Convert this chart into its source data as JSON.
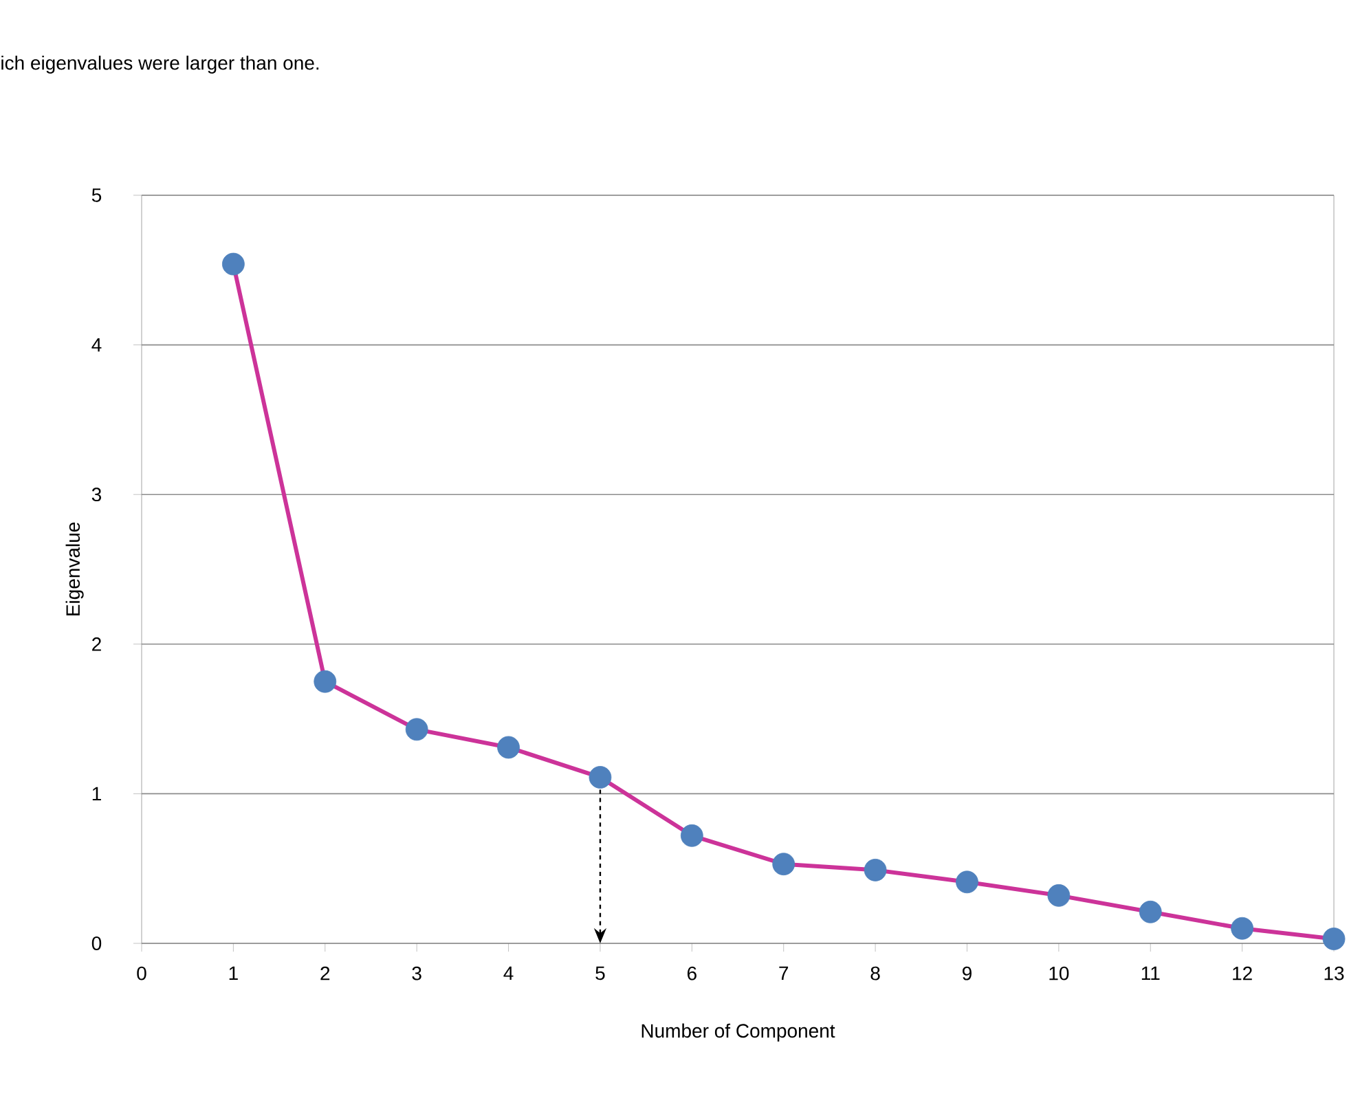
{
  "chart_data": {
    "type": "line",
    "xlabel": "Number of Component",
    "ylabel": "Eigenvalue",
    "annotations": [
      "ich eigenvalues were larger than one."
    ],
    "x": [
      1,
      2,
      3,
      4,
      5,
      6,
      7,
      8,
      9,
      10,
      11,
      12,
      13
    ],
    "series": [
      {
        "color": "#cc3399",
        "colors": [
          "#4f81bd",
          "#4f81bd",
          "#4f81bd",
          "#4f81bd",
          "#4f81bd",
          "#4f81bd",
          "#4f81bd",
          "#4f81bd",
          "#4f81bd",
          "#4f81bd",
          "#4f81bd",
          "#4f81bd",
          "#4f81bd"
        ],
        "values": [
          4.54,
          1.75,
          1.43,
          1.31,
          1.11,
          0.72,
          0.53,
          0.49,
          0.41,
          0.32,
          0.21,
          0.1,
          0.03
        ]
      }
    ],
    "xlim": [
      0,
      13
    ],
    "ylim": [
      0,
      5
    ],
    "xticks": [
      0,
      1,
      2,
      3,
      4,
      5,
      6,
      7,
      8,
      9,
      10,
      11,
      12,
      13
    ],
    "yticks": [
      0,
      1,
      2,
      3,
      4,
      5
    ],
    "grid": "y",
    "marker": "circle",
    "line_style": "solid",
    "ref_lines": [
      {
        "axis": "x",
        "value": 5,
        "line_style": "dashed",
        "color": "#000000"
      }
    ]
  }
}
